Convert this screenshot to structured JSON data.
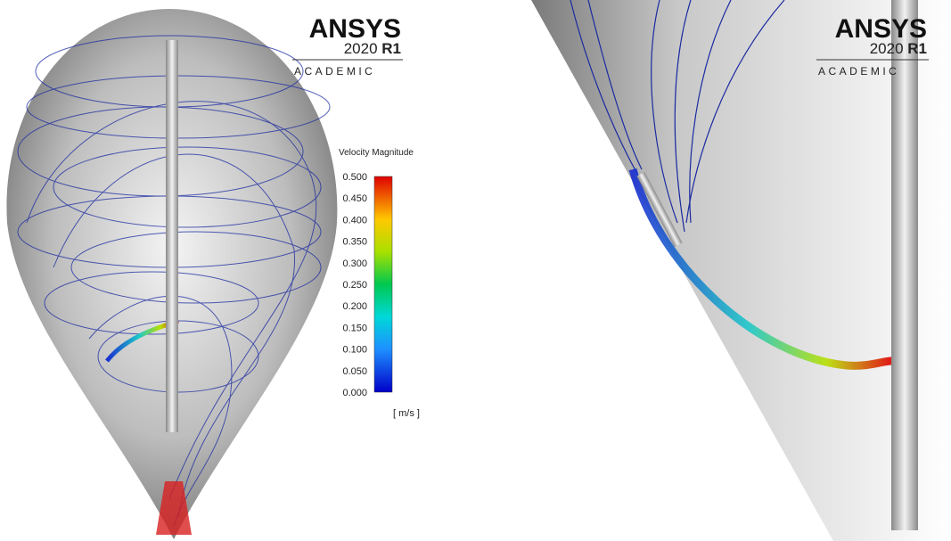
{
  "left_view": {
    "logo": {
      "brand": "ANSYS",
      "version": "2020",
      "release": "R1",
      "edition": "ACADEMIC"
    },
    "legend": {
      "title": "Velocity Magnitude",
      "ticks": [
        "0.500",
        "0.450",
        "0.400",
        "0.350",
        "0.300",
        "0.250",
        "0.200",
        "0.150",
        "0.100",
        "0.050",
        "0.000"
      ],
      "unit": "[ m/s ]"
    }
  },
  "right_view": {
    "logo": {
      "brand": "ANSYS",
      "version": "2020",
      "release": "R1",
      "edition": "ACADEMIC"
    }
  }
}
